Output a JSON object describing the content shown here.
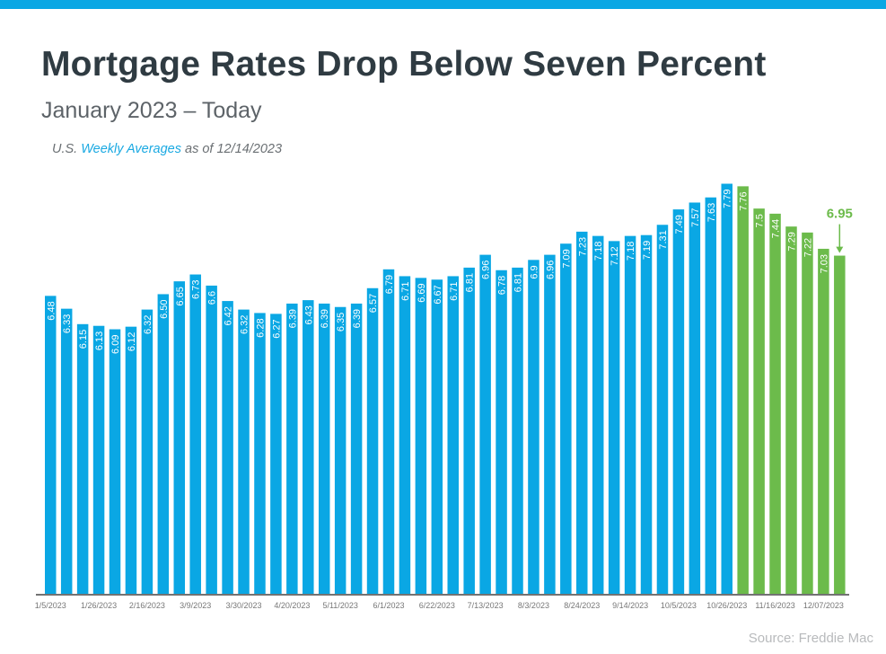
{
  "title": "Mortgage Rates Drop Below Seven Percent",
  "subtitle": "January 2023 – Today",
  "note": {
    "prefix": "U.S. ",
    "highlight": "Weekly Averages",
    "suffix": " as of 12/14/2023"
  },
  "source": "Source: Freddie Mac",
  "colors": {
    "blue": "#0aa7e4",
    "green": "#6cbb4b",
    "title": "#2f3b42"
  },
  "chart_data": {
    "type": "bar",
    "title": "Mortgage Rates Drop Below Seven Percent",
    "subtitle": "January 2023 – Today",
    "xlabel": "",
    "ylabel": "",
    "ylim": [
      3,
      8
    ],
    "grid": false,
    "x_tick_labels": [
      "1/5/2023",
      "1/26/2023",
      "2/16/2023",
      "3/9/2023",
      "3/30/2023",
      "4/20/2023",
      "5/11/2023",
      "6/1/2023",
      "6/22/2023",
      "7/13/2023",
      "8/3/2023",
      "8/24/2023",
      "9/14/2023",
      "10/5/2023",
      "10/26/2023",
      "11/16/2023",
      "12/07/2023"
    ],
    "values": [
      6.48,
      6.33,
      6.15,
      6.13,
      6.09,
      6.12,
      6.32,
      6.5,
      6.65,
      6.73,
      6.6,
      6.42,
      6.32,
      6.28,
      6.27,
      6.39,
      6.43,
      6.39,
      6.35,
      6.39,
      6.57,
      6.79,
      6.71,
      6.69,
      6.67,
      6.71,
      6.81,
      6.96,
      6.78,
      6.81,
      6.9,
      6.96,
      7.09,
      7.23,
      7.18,
      7.12,
      7.18,
      7.19,
      7.31,
      7.49,
      7.57,
      7.63,
      7.79,
      7.76,
      7.5,
      7.44,
      7.29,
      7.22,
      7.03,
      6.95
    ],
    "labels": [
      "6.48",
      "6.33",
      "6.15",
      "6.13",
      "6.09",
      "6.12",
      "6.32",
      "6.50",
      "6.65",
      "6.73",
      "6.6",
      "6.42",
      "6.32",
      "6.28",
      "6.27",
      "6.39",
      "6.43",
      "6.39",
      "6.35",
      "6.39",
      "6.57",
      "6.79",
      "6.71",
      "6.69",
      "6.67",
      "6.71",
      "6.81",
      "6.96",
      "6.78",
      "6.81",
      "6.9",
      "6.96",
      "7.09",
      "7.23",
      "7.18",
      "7.12",
      "7.18",
      "7.19",
      "7.31",
      "7.49",
      "7.57",
      "7.63",
      "7.79",
      "7.76",
      "7.5",
      "7.44",
      "7.29",
      "7.22",
      "7.03",
      "6.95"
    ],
    "green_from_index": 43,
    "callout": "6.95"
  }
}
